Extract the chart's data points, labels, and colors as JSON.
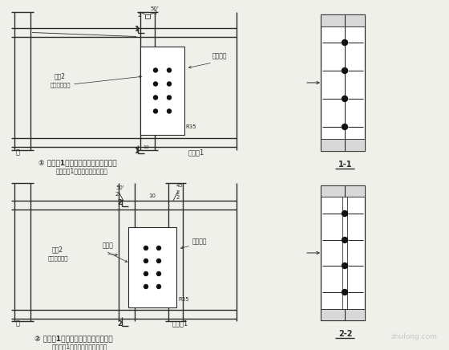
{
  "bg_color": "#f0f0eb",
  "line_color": "#2a2a2a",
  "title1": "① 楼面梁1与刚架柱的刚性连接（一）",
  "subtitle1": "（楼面梁1与刚架柱直接连接）",
  "title2": "② 楼面梁1与刚架柱的刚性连接（二）",
  "subtitle2": "（楼面梁1与刚架柱的共接连接）",
  "label_zhu": "柱",
  "label_lmz": "楼面梁1",
  "label_jqj1": "加刦2",
  "label_jqj2": "（成对布置）",
  "label_glfz": "高强费栅",
  "label_ljb": "连接板",
  "label_r35": "R35",
  "label_10": "10",
  "label_50": "50'",
  "label_45": "45'",
  "section1": "1-1",
  "section2": "2-2"
}
